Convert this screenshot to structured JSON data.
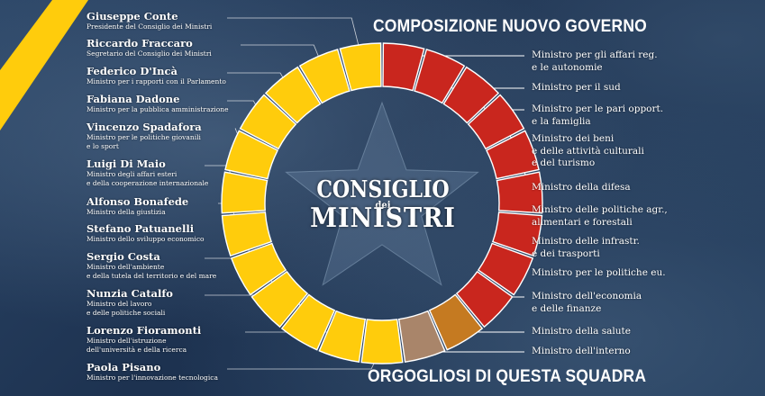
{
  "colors": {
    "yellow": "#ffcc0c",
    "red": "#c9261e",
    "orange": "#c57a21",
    "tan": "#a9856a",
    "background": "#1e3452"
  },
  "headline_top": "COMPOSIZIONE NUOVO GOVERNO",
  "headline_bottom": "ORGOGLIOSI DI QUESTA SQUADRA",
  "center": {
    "line1": "CONSIGLIO",
    "line2": "dei",
    "line3": "MINISTRI",
    "icon": "star-icon"
  },
  "ministers": [
    {
      "name": "Giuseppe Conte",
      "role": "Presidente del Consiglio dei Ministri"
    },
    {
      "name": "Riccardo Fraccaro",
      "role": "Segretario del Consiglio dei Ministri"
    },
    {
      "name": "Federico D'Incà",
      "role": "Ministro per i rapporti con il Parlamento"
    },
    {
      "name": "Fabiana Dadone",
      "role": "Ministro per la pubblica amministrazione"
    },
    {
      "name": "Vincenzo Spadafora",
      "role": "Ministro per le politiche giovanili\ne lo sport"
    },
    {
      "name": "Luigi Di Maio",
      "role": "Ministro degli affari esteri\ne della cooperazione internazionale"
    },
    {
      "name": "Alfonso Bonafede",
      "role": "Ministro della giustizia"
    },
    {
      "name": "Stefano Patuanelli",
      "role": "Ministro dello sviluppo economico"
    },
    {
      "name": "Sergio Costa",
      "role": "Ministro dell'ambiente\ne della tutela del territorio e del mare"
    },
    {
      "name": "Nunzia Catalfo",
      "role": "Ministro del lavoro\n e delle politiche sociali"
    },
    {
      "name": "Lorenzo Fioramonti",
      "role": "Ministro dell'istruzione\ndell'università e della ricerca"
    },
    {
      "name": "Paola Pisano",
      "role": "Ministro per l'innovazione tecnologica"
    }
  ],
  "portfolios": [
    "Ministro per gli affari reg.\ne le autonomie",
    "Ministro per il sud",
    "Ministro per le pari opport.\ne la famiglia",
    "Ministro dei beni\ne delle attività culturali\ne del turismo",
    "Ministro della difesa",
    "Ministro delle politiche agr.,\nalimentari e forestali",
    "Ministro delle infrastr.\ne dei trasporti",
    "Ministro per le politiche eu.",
    "Ministro dell'economia\ne delle finanze",
    "Ministro della salute",
    "Ministro dell'interno"
  ]
}
